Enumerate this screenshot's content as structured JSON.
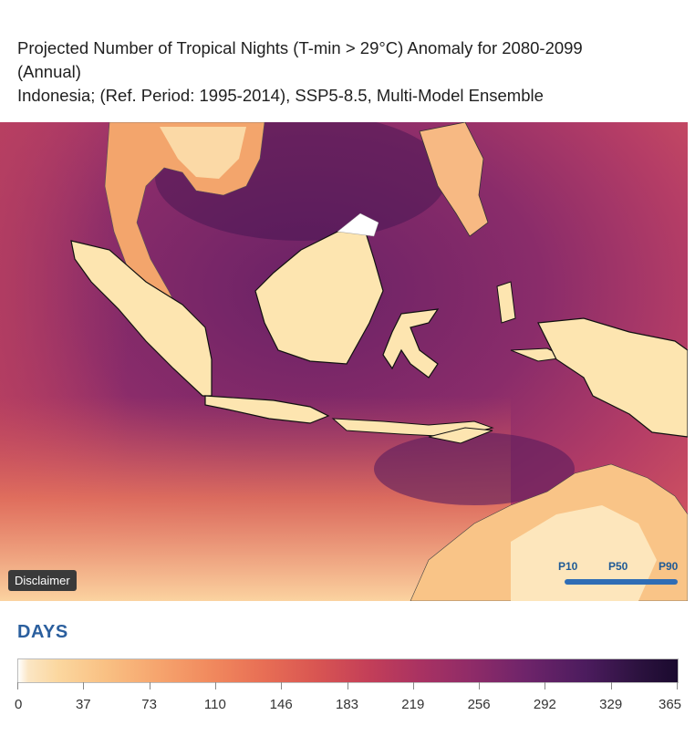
{
  "title": {
    "line1": "Projected Number of Tropical Nights (T-min > 29°C) Anomaly for 2080-2099",
    "line2": "(Annual)",
    "line3": "Indonesia; (Ref. Period: 1995-2014), SSP5-8.5, Multi-Model Ensemble"
  },
  "map": {
    "disclaimer_label": "Disclaimer",
    "percentiles": [
      "P10",
      "P50",
      "P90"
    ],
    "land_color": "#fde5b0",
    "sea_dark_color": "#7a2a6a",
    "sea_mid_color": "#c4456a",
    "south_warm_color": "#f7b27a"
  },
  "legend": {
    "title": "DAYS",
    "ticks": [
      "0",
      "37",
      "73",
      "110",
      "146",
      "183",
      "219",
      "256",
      "292",
      "329",
      "365"
    ],
    "accent_color": "#2b5f9e"
  }
}
